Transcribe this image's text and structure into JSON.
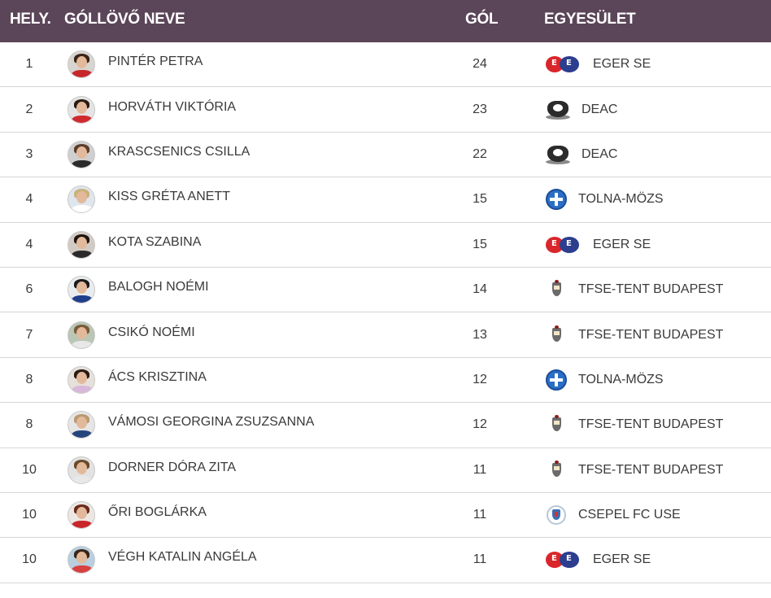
{
  "header": {
    "rank": "HELY.",
    "name": "GÓLLÖVŐ NEVE",
    "goals": "GÓL",
    "club": "EGYESÜLET"
  },
  "colors": {
    "header_bg": "#5b4558",
    "header_text": "#ffffff",
    "row_divider": "#d6d6d6"
  },
  "rows": [
    {
      "rank": "1",
      "name": "PINTÉR PETRA",
      "goals": "24",
      "club": "EGER SE",
      "logo": "eger-se-logo"
    },
    {
      "rank": "2",
      "name": "HORVÁTH VIKTÓRIA",
      "goals": "23",
      "club": "DEAC",
      "logo": "deac-logo"
    },
    {
      "rank": "3",
      "name": "KRASCSENICS CSILLA",
      "goals": "22",
      "club": "DEAC",
      "logo": "deac-logo"
    },
    {
      "rank": "4",
      "name": "KISS GRÉTA ANETT",
      "goals": "15",
      "club": "TOLNA-MÖZS",
      "logo": "tolna-mozs-logo"
    },
    {
      "rank": "4",
      "name": "KOTA SZABINA",
      "goals": "15",
      "club": "EGER SE",
      "logo": "eger-se-logo"
    },
    {
      "rank": "6",
      "name": "BALOGH NOÉMI",
      "goals": "14",
      "club": "TFSE-TENT BUDAPEST",
      "logo": "tfse-logo"
    },
    {
      "rank": "7",
      "name": "CSIKÓ NOÉMI",
      "goals": "13",
      "club": "TFSE-TENT BUDAPEST",
      "logo": "tfse-logo"
    },
    {
      "rank": "8",
      "name": "ÁCS KRISZTINA",
      "goals": "12",
      "club": "TOLNA-MÖZS",
      "logo": "tolna-mozs-logo"
    },
    {
      "rank": "8",
      "name": "VÁMOSI GEORGINA ZSUZSANNA",
      "goals": "12",
      "club": "TFSE-TENT BUDAPEST",
      "logo": "tfse-logo"
    },
    {
      "rank": "10",
      "name": "DORNER DÓRA ZITA",
      "goals": "11",
      "club": "TFSE-TENT BUDAPEST",
      "logo": "tfse-logo"
    },
    {
      "rank": "10",
      "name": "ŐRI BOGLÁRKA",
      "goals": "11",
      "club": "CSEPEL FC USE",
      "logo": "csepel-logo"
    },
    {
      "rank": "10",
      "name": "VÉGH KATALIN ANGÉLA",
      "goals": "11",
      "club": "EGER SE",
      "logo": "eger-se-logo"
    }
  ]
}
